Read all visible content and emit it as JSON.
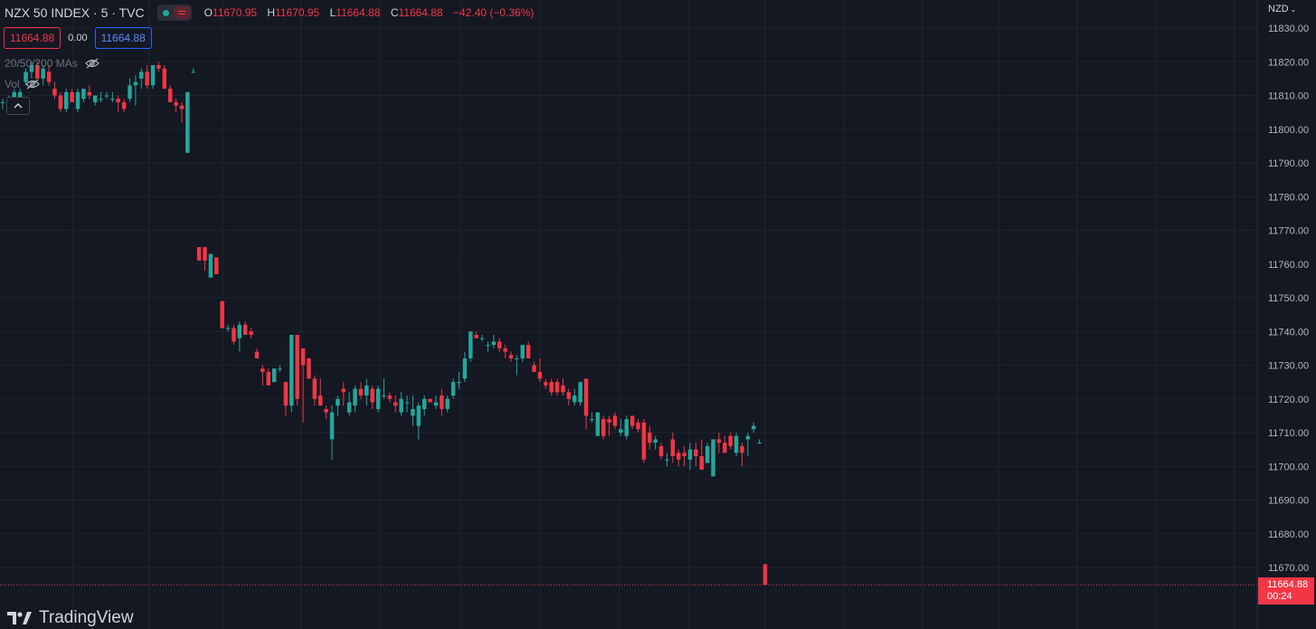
{
  "header": {
    "symbol": "NZX 50 INDEX · 5 · TVC",
    "ohlc": {
      "open_label": "O",
      "open": "11670.95",
      "high_label": "H",
      "high": "11670.95",
      "low_label": "L",
      "low": "11664.88",
      "close_label": "C",
      "close": "11664.88",
      "change": "−42.40 (−0.36%)"
    }
  },
  "trade": {
    "sell": "11664.88",
    "spread": "0.00",
    "buy": "11664.88"
  },
  "indicators": {
    "ma_label": "20/50/200 MAs",
    "vol_label": "Vol"
  },
  "currency": "NZD",
  "last_price": {
    "price": "11664.88",
    "countdown": "00:24"
  },
  "branding": {
    "name": "TradingView"
  },
  "colors": {
    "up": "#26a69a",
    "down": "#f23645",
    "background": "#141823",
    "grid": "#1f2330"
  },
  "chart_data": {
    "type": "candlestick",
    "y_ticks": [
      11670,
      11680,
      11690,
      11700,
      11710,
      11720,
      11730,
      11740,
      11750,
      11760,
      11770,
      11780,
      11790,
      11800,
      11810,
      11820,
      11830
    ],
    "y_tick_labels": [
      "11670.00",
      "11680.00",
      "11690.00",
      "11700.00",
      "11710.00",
      "11720.00",
      "11730.00",
      "11740.00",
      "11750.00",
      "11760.00",
      "11770.00",
      "11780.00",
      "11790.00",
      "11800.00",
      "11810.00",
      "11820.00",
      "11830.00"
    ],
    "ylim": [
      11660,
      11835
    ],
    "last_price": 11664.88,
    "grid": true,
    "candles": [
      {
        "o": 11808,
        "h": 11809,
        "l": 11806,
        "c": 11808
      },
      {
        "o": 11808,
        "h": 11810,
        "l": 11807,
        "c": 11809
      },
      {
        "o": 11808,
        "h": 11812,
        "l": 11807,
        "c": 11811
      },
      {
        "o": 11809,
        "h": 11812,
        "l": 11808,
        "c": 11811
      },
      {
        "o": 11814,
        "h": 11818,
        "l": 11813,
        "c": 11817
      },
      {
        "o": 11817,
        "h": 11820,
        "l": 11815,
        "c": 11819
      },
      {
        "o": 11819,
        "h": 11820,
        "l": 11815,
        "c": 11815
      },
      {
        "o": 11815,
        "h": 11819,
        "l": 11813,
        "c": 11818
      },
      {
        "o": 11817,
        "h": 11819,
        "l": 11813,
        "c": 11814
      },
      {
        "o": 11812,
        "h": 11814,
        "l": 11809,
        "c": 11810
      },
      {
        "o": 11810,
        "h": 11811,
        "l": 11805,
        "c": 11806
      },
      {
        "o": 11806,
        "h": 11812,
        "l": 11805,
        "c": 11811
      },
      {
        "o": 11811,
        "h": 11812,
        "l": 11808,
        "c": 11808
      },
      {
        "o": 11806,
        "h": 11812,
        "l": 11805,
        "c": 11811
      },
      {
        "o": 11809,
        "h": 11812,
        "l": 11808,
        "c": 11812
      },
      {
        "o": 11811,
        "h": 11813,
        "l": 11809,
        "c": 11810
      },
      {
        "o": 11808,
        "h": 11810,
        "l": 11807,
        "c": 11810
      },
      {
        "o": 11809,
        "h": 11811,
        "l": 11808,
        "c": 11809
      },
      {
        "o": 11810,
        "h": 11811,
        "l": 11809,
        "c": 11810
      },
      {
        "o": 11809,
        "h": 11811,
        "l": 11808,
        "c": 11809
      },
      {
        "o": 11809,
        "h": 11810,
        "l": 11805,
        "c": 11808
      },
      {
        "o": 11808,
        "h": 11809,
        "l": 11805,
        "c": 11806
      },
      {
        "o": 11809,
        "h": 11815,
        "l": 11808,
        "c": 11813
      },
      {
        "o": 11813,
        "h": 11816,
        "l": 11807,
        "c": 11814
      },
      {
        "o": 11815,
        "h": 11818,
        "l": 11812,
        "c": 11817
      },
      {
        "o": 11817,
        "h": 11819,
        "l": 11812,
        "c": 11813
      },
      {
        "o": 11813,
        "h": 11819,
        "l": 11812,
        "c": 11819
      },
      {
        "o": 11819,
        "h": 11820,
        "l": 11817,
        "c": 11818
      },
      {
        "o": 11818,
        "h": 11819,
        "l": 11812,
        "c": 11812
      },
      {
        "o": 11812,
        "h": 11813,
        "l": 11808,
        "c": 11808
      },
      {
        "o": 11808,
        "h": 11809,
        "l": 11805,
        "c": 11807
      },
      {
        "o": 11807,
        "h": 11808,
        "l": 11802,
        "c": 11806
      },
      {
        "o": 11793,
        "h": 11811,
        "l": 11793,
        "c": 11811
      },
      {
        "o": 11817,
        "h": 11818,
        "l": 11817,
        "c": 11817
      },
      {
        "o": 11765,
        "h": 11765,
        "l": 11761,
        "c": 11761
      },
      {
        "o": 11765,
        "h": 11765,
        "l": 11758,
        "c": 11761
      },
      {
        "o": 11756,
        "h": 11763,
        "l": 11756,
        "c": 11763
      },
      {
        "o": 11762,
        "h": 11762,
        "l": 11757,
        "c": 11757
      },
      {
        "o": 11749,
        "h": 11749,
        "l": 11741,
        "c": 11741
      },
      {
        "o": 11741,
        "h": 11742,
        "l": 11740,
        "c": 11741
      },
      {
        "o": 11741,
        "h": 11742,
        "l": 11736,
        "c": 11737
      },
      {
        "o": 11738,
        "h": 11743,
        "l": 11734,
        "c": 11742
      },
      {
        "o": 11742,
        "h": 11743,
        "l": 11739,
        "c": 11739
      },
      {
        "o": 11740,
        "h": 11741,
        "l": 11738,
        "c": 11739
      },
      {
        "o": 11734,
        "h": 11735,
        "l": 11732,
        "c": 11732
      },
      {
        "o": 11729,
        "h": 11730,
        "l": 11724,
        "c": 11728
      },
      {
        "o": 11728,
        "h": 11729,
        "l": 11724,
        "c": 11724
      },
      {
        "o": 11725,
        "h": 11729,
        "l": 11725,
        "c": 11729
      },
      {
        "o": 11729,
        "h": 11730,
        "l": 11728,
        "c": 11729
      },
      {
        "o": 11725,
        "h": 11725,
        "l": 11715,
        "c": 11718
      },
      {
        "o": 11718,
        "h": 11739,
        "l": 11716,
        "c": 11739
      },
      {
        "o": 11739,
        "h": 11739,
        "l": 11718,
        "c": 11720
      },
      {
        "o": 11735,
        "h": 11735,
        "l": 11713,
        "c": 11730
      },
      {
        "o": 11732,
        "h": 11732,
        "l": 11726,
        "c": 11726
      },
      {
        "o": 11726,
        "h": 11727,
        "l": 11718,
        "c": 11720
      },
      {
        "o": 11721,
        "h": 11726,
        "l": 11718,
        "c": 11718
      },
      {
        "o": 11717,
        "h": 11718,
        "l": 11714,
        "c": 11716
      },
      {
        "o": 11708,
        "h": 11718,
        "l": 11702,
        "c": 11716
      },
      {
        "o": 11718,
        "h": 11721,
        "l": 11715,
        "c": 11720
      },
      {
        "o": 11723,
        "h": 11725,
        "l": 11718,
        "c": 11722
      },
      {
        "o": 11716,
        "h": 11722,
        "l": 11715,
        "c": 11719
      },
      {
        "o": 11718,
        "h": 11724,
        "l": 11716,
        "c": 11723
      },
      {
        "o": 11723,
        "h": 11725,
        "l": 11720,
        "c": 11721
      },
      {
        "o": 11721,
        "h": 11726,
        "l": 11718,
        "c": 11724
      },
      {
        "o": 11723,
        "h": 11724,
        "l": 11717,
        "c": 11719
      },
      {
        "o": 11717,
        "h": 11724,
        "l": 11716,
        "c": 11723
      },
      {
        "o": 11721,
        "h": 11726,
        "l": 11720,
        "c": 11721
      },
      {
        "o": 11721,
        "h": 11722,
        "l": 11719,
        "c": 11720
      },
      {
        "o": 11719,
        "h": 11721,
        "l": 11716,
        "c": 11718
      },
      {
        "o": 11716,
        "h": 11722,
        "l": 11715,
        "c": 11720
      },
      {
        "o": 11719,
        "h": 11721,
        "l": 11716,
        "c": 11719
      },
      {
        "o": 11715,
        "h": 11721,
        "l": 11712,
        "c": 11717
      },
      {
        "o": 11712,
        "h": 11719,
        "l": 11708,
        "c": 11718
      },
      {
        "o": 11717,
        "h": 11721,
        "l": 11715,
        "c": 11720
      },
      {
        "o": 11720,
        "h": 11720,
        "l": 11719,
        "c": 11719
      },
      {
        "o": 11718,
        "h": 11721,
        "l": 11717,
        "c": 11719
      },
      {
        "o": 11721,
        "h": 11723,
        "l": 11715,
        "c": 11717
      },
      {
        "o": 11717,
        "h": 11721,
        "l": 11716,
        "c": 11720
      },
      {
        "o": 11721,
        "h": 11726,
        "l": 11720,
        "c": 11725
      },
      {
        "o": 11725,
        "h": 11728,
        "l": 11723,
        "c": 11725
      },
      {
        "o": 11726,
        "h": 11734,
        "l": 11725,
        "c": 11732
      },
      {
        "o": 11732,
        "h": 11740,
        "l": 11731,
        "c": 11740
      },
      {
        "o": 11739,
        "h": 11740,
        "l": 11738,
        "c": 11738
      },
      {
        "o": 11738,
        "h": 11739,
        "l": 11737,
        "c": 11738
      },
      {
        "o": 11736,
        "h": 11737,
        "l": 11734,
        "c": 11736
      },
      {
        "o": 11736,
        "h": 11739,
        "l": 11735,
        "c": 11737
      },
      {
        "o": 11737,
        "h": 11738,
        "l": 11734,
        "c": 11735
      },
      {
        "o": 11735,
        "h": 11736,
        "l": 11732,
        "c": 11734
      },
      {
        "o": 11733,
        "h": 11734,
        "l": 11731,
        "c": 11732
      },
      {
        "o": 11732,
        "h": 11733,
        "l": 11727,
        "c": 11732
      },
      {
        "o": 11732,
        "h": 11736,
        "l": 11731,
        "c": 11736
      },
      {
        "o": 11736,
        "h": 11737,
        "l": 11732,
        "c": 11732
      },
      {
        "o": 11730,
        "h": 11731,
        "l": 11728,
        "c": 11728
      },
      {
        "o": 11728,
        "h": 11732,
        "l": 11725,
        "c": 11726
      },
      {
        "o": 11725,
        "h": 11726,
        "l": 11723,
        "c": 11724
      },
      {
        "o": 11725,
        "h": 11726,
        "l": 11721,
        "c": 11722
      },
      {
        "o": 11725,
        "h": 11726,
        "l": 11721,
        "c": 11722
      },
      {
        "o": 11724,
        "h": 11726,
        "l": 11721,
        "c": 11722
      },
      {
        "o": 11722,
        "h": 11723,
        "l": 11718,
        "c": 11720
      },
      {
        "o": 11719,
        "h": 11723,
        "l": 11718,
        "c": 11721
      },
      {
        "o": 11719,
        "h": 11725,
        "l": 11718,
        "c": 11725
      },
      {
        "o": 11726,
        "h": 11726,
        "l": 11711,
        "c": 11715
      },
      {
        "o": 11714,
        "h": 11716,
        "l": 11713,
        "c": 11714
      },
      {
        "o": 11709,
        "h": 11716,
        "l": 11709,
        "c": 11716
      },
      {
        "o": 11714,
        "h": 11715,
        "l": 11708,
        "c": 11709
      },
      {
        "o": 11714,
        "h": 11715,
        "l": 11709,
        "c": 11713
      },
      {
        "o": 11715,
        "h": 11716,
        "l": 11711,
        "c": 11712
      },
      {
        "o": 11710,
        "h": 11714,
        "l": 11709,
        "c": 11711
      },
      {
        "o": 11709,
        "h": 11715,
        "l": 11708,
        "c": 11714
      },
      {
        "o": 11715,
        "h": 11715,
        "l": 11711,
        "c": 11712
      },
      {
        "o": 11713,
        "h": 11714,
        "l": 11710,
        "c": 11711
      },
      {
        "o": 11713,
        "h": 11714,
        "l": 11701,
        "c": 11702
      },
      {
        "o": 11710,
        "h": 11712,
        "l": 11705,
        "c": 11707
      },
      {
        "o": 11707,
        "h": 11709,
        "l": 11705,
        "c": 11708
      },
      {
        "o": 11706,
        "h": 11707,
        "l": 11702,
        "c": 11703
      },
      {
        "o": 11702,
        "h": 11704,
        "l": 11700,
        "c": 11702
      },
      {
        "o": 11708,
        "h": 11710,
        "l": 11701,
        "c": 11703
      },
      {
        "o": 11704,
        "h": 11705,
        "l": 11700,
        "c": 11702
      },
      {
        "o": 11704,
        "h": 11706,
        "l": 11700,
        "c": 11703
      },
      {
        "o": 11702,
        "h": 11707,
        "l": 11699,
        "c": 11705
      },
      {
        "o": 11705,
        "h": 11707,
        "l": 11700,
        "c": 11703
      },
      {
        "o": 11703,
        "h": 11708,
        "l": 11699,
        "c": 11699
      },
      {
        "o": 11701,
        "h": 11707,
        "l": 11701,
        "c": 11706
      },
      {
        "o": 11697,
        "h": 11708,
        "l": 11697,
        "c": 11708
      },
      {
        "o": 11708,
        "h": 11710,
        "l": 11704,
        "c": 11707
      },
      {
        "o": 11707,
        "h": 11709,
        "l": 11704,
        "c": 11704
      },
      {
        "o": 11709,
        "h": 11710,
        "l": 11705,
        "c": 11706
      },
      {
        "o": 11704,
        "h": 11710,
        "l": 11703,
        "c": 11709
      },
      {
        "o": 11706,
        "h": 11707,
        "l": 11700,
        "c": 11704
      },
      {
        "o": 11708,
        "h": 11710,
        "l": 11703,
        "c": 11709
      },
      {
        "o": 11711,
        "h": 11713,
        "l": 11710,
        "c": 11712
      },
      {
        "o": 11707,
        "h": 11708,
        "l": 11707,
        "c": 11707
      },
      {
        "o": 11670.95,
        "h": 11670.95,
        "l": 11664.88,
        "c": 11664.88
      }
    ]
  }
}
